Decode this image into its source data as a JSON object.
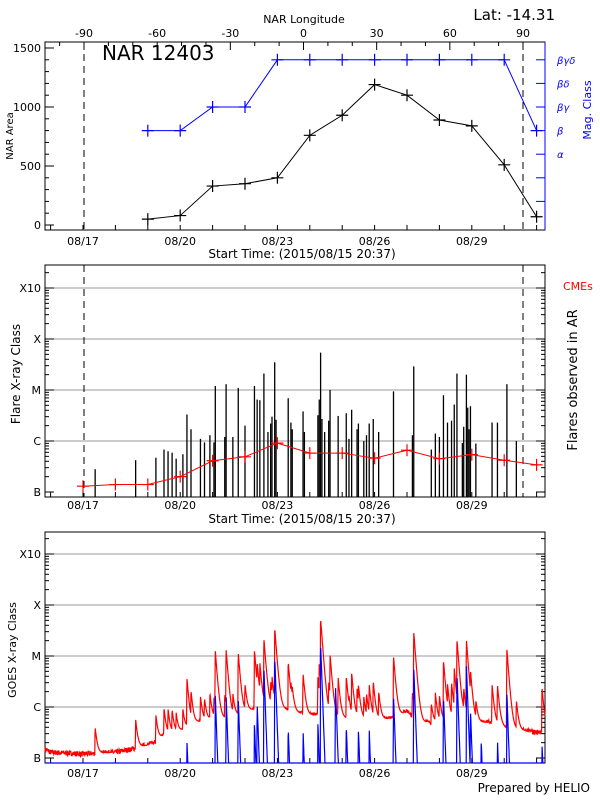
{
  "chart_data": [
    {
      "type": "line",
      "title": "NAR 12403",
      "annotation": "Lat: -14.31",
      "xlabel": "Start Time: (2015/08/15 20:37)",
      "x_tick_labels": [
        "08/17",
        "08/20",
        "08/23",
        "08/26",
        "08/29"
      ],
      "top_axis_label": "NAR Longitude",
      "top_tick_labels": [
        "-90",
        "-60",
        "-30",
        "0",
        "30",
        "60",
        "90"
      ],
      "ylabel": "NAR Area",
      "y_tick_labels": [
        "0",
        "500",
        "1000",
        "1500"
      ],
      "ylim": [
        -40,
        1550
      ],
      "y2label": "Mag. Class",
      "y2_tick_labels": [
        "α",
        "β",
        "βγ",
        "βδ",
        "βγδ"
      ],
      "limb_longitudes": [
        -90,
        90
      ],
      "x": [
        "08/19",
        "08/20",
        "08/21",
        "08/22",
        "08/23",
        "08/24",
        "08/25",
        "08/26",
        "08/27",
        "08/28",
        "08/29",
        "08/30",
        "08/31"
      ],
      "series": [
        {
          "axis": "left",
          "color": "#000000",
          "values": [
            50,
            80,
            330,
            350,
            400,
            760,
            930,
            1190,
            1100,
            890,
            840,
            510,
            70
          ]
        },
        {
          "axis": "right",
          "color": "#0000ff",
          "values": [
            "β",
            "β",
            "βγ",
            "βγ",
            "βγδ",
            "βγδ",
            "βγδ",
            "βγδ",
            "βγδ",
            "βγδ",
            "βγδ",
            "βγδ",
            "β"
          ]
        }
      ]
    },
    {
      "type": "bar",
      "xlabel": "Start Time: (2015/08/15 20:37)",
      "x_tick_labels": [
        "08/17",
        "08/20",
        "08/23",
        "08/26",
        "08/29"
      ],
      "ylabel": "Flare X-ray Class",
      "y_tick_labels": [
        "B",
        "C",
        "M",
        "X",
        "X10"
      ],
      "y_scale": "log",
      "grid": true,
      "y2label": "Flares observed in AR",
      "flares": [
        [
          "08/17 09:00",
          "B2.8"
        ],
        [
          "08/18 15:00",
          "B4.2"
        ],
        [
          "08/19 06:00",
          "B4.7"
        ],
        [
          "08/19 12:00",
          "B6.8"
        ],
        [
          "08/19 15:00",
          "B6.3"
        ],
        [
          "08/19 18:00",
          "B5.9"
        ],
        [
          "08/19 21:00",
          "B4.5"
        ],
        [
          "08/20 02:00",
          "B5.5"
        ],
        [
          "08/20 05:00",
          "C3.3"
        ],
        [
          "08/20 08:00",
          "C1.7"
        ],
        [
          "08/20 15:00",
          "C1.1"
        ],
        [
          "08/20 18:00",
          "B9.4"
        ],
        [
          "08/20 22:00",
          "C1.3"
        ],
        [
          "08/21 01:00",
          "B9.4"
        ],
        [
          "08/21 02:00",
          "M1.2"
        ],
        [
          "08/21 09:00",
          "C1.2"
        ],
        [
          "08/21 10:00",
          "M1.3"
        ],
        [
          "08/21 15:00",
          "C1.2"
        ],
        [
          "08/21 19:00",
          "M1.1"
        ],
        [
          "08/22 00:00",
          "C2.0"
        ],
        [
          "08/22 07:00",
          "M1.2"
        ],
        [
          "08/22 09:00",
          "C6.5"
        ],
        [
          "08/22 11:00",
          "C6.3"
        ],
        [
          "08/22 14:00",
          "M2.1"
        ],
        [
          "08/22 17:00",
          "C1.5"
        ],
        [
          "08/22 19:00",
          "C2.2"
        ],
        [
          "08/22 20:00",
          "C3.0"
        ],
        [
          "08/22 22:00",
          "M3.5"
        ],
        [
          "08/22 23:00",
          "C2.6"
        ],
        [
          "08/23 08:00",
          "C6.9"
        ],
        [
          "08/23 10:00",
          "C2.3"
        ],
        [
          "08/23 11:00",
          "C1.7"
        ],
        [
          "08/23 19:00",
          "C3.8"
        ],
        [
          "08/23 20:00",
          "C1.5"
        ],
        [
          "08/24 06:00",
          "C3.2"
        ],
        [
          "08/24 07:00",
          "C6.5"
        ],
        [
          "08/24 08:00",
          "M5.4"
        ],
        [
          "08/24 09:00",
          "C2.7"
        ],
        [
          "08/24 11:00",
          "C1.5"
        ],
        [
          "08/24 14:00",
          "C2.5"
        ],
        [
          "08/24 15:00",
          "M1.0"
        ],
        [
          "08/24 21:00",
          "C3.1"
        ],
        [
          "08/25 03:00",
          "C3.5"
        ],
        [
          "08/25 05:00",
          "C1.1"
        ],
        [
          "08/25 07:00",
          "C4.1"
        ],
        [
          "08/25 11:00",
          "C1.7"
        ],
        [
          "08/25 12:00",
          "C2.2"
        ],
        [
          "08/25 16:00",
          "C1.0"
        ],
        [
          "08/25 18:00",
          "C1.3"
        ],
        [
          "08/25 20:00",
          "C2.2"
        ],
        [
          "08/25 23:00",
          "C2.7"
        ],
        [
          "08/26 03:00",
          "C1.5"
        ],
        [
          "08/26 14:00",
          "C9.4"
        ],
        [
          "08/27 04:00",
          "C1.3"
        ],
        [
          "08/27 05:00",
          "M2.9"
        ],
        [
          "08/27 18:00",
          "B6.8"
        ],
        [
          "08/27 21:00",
          "C1.4"
        ],
        [
          "08/28 00:00",
          "C1.2"
        ],
        [
          "08/28 03:00",
          "C7.9"
        ],
        [
          "08/28 06:00",
          "C2.3"
        ],
        [
          "08/28 09:00",
          "C2.5"
        ],
        [
          "08/28 11:00",
          "C5.2"
        ],
        [
          "08/28 13:00",
          "M2.1"
        ],
        [
          "08/28 17:00",
          "B9.1"
        ],
        [
          "08/28 18:00",
          "C1.9"
        ],
        [
          "08/28 20:00",
          "M2.0"
        ],
        [
          "08/28 21:00",
          "C4.5"
        ],
        [
          "08/28 22:00",
          "C1.7"
        ],
        [
          "08/28 23:00",
          "C4.8"
        ],
        [
          "08/29 03:00",
          "B8.9"
        ],
        [
          "08/29 15:00",
          "C2.3"
        ],
        [
          "08/29 19:00",
          "C2.3"
        ],
        [
          "08/30 02:00",
          "M1.3"
        ],
        [
          "08/30 09:00",
          "C1.0"
        ]
      ],
      "series": [
        {
          "name": "CMEs",
          "color": "#ff0000",
          "x": [
            "08/17",
            "08/18",
            "08/19",
            "08/20",
            "08/21",
            "08/22",
            "08/23",
            "08/24",
            "08/25",
            "08/26",
            "08/27",
            "08/28",
            "08/29",
            "08/30",
            "08/31"
          ],
          "values": [
            "B1.3",
            "B1.4",
            "B1.4",
            "B2.0",
            "B4.1",
            "B4.9",
            "B9.1",
            "B5.8",
            "B5.8",
            "B4.6",
            "B6.6",
            "B4.5",
            "B5.4",
            "B4.2",
            "B3.4"
          ]
        }
      ]
    },
    {
      "type": "line",
      "ylabel": "GOES X-ray Class",
      "x_tick_labels": [
        "08/17",
        "08/20",
        "08/23",
        "08/26",
        "08/29"
      ],
      "y_tick_labels": [
        "B",
        "C",
        "M",
        "X",
        "X10"
      ],
      "y_scale": "log",
      "grid": true,
      "series": [
        {
          "color": "#ff0000",
          "background_x": [
            "08/15 20:00",
            "08/16 00:00",
            "08/17 00:00",
            "08/18 00:00",
            "08/18 12:00",
            "08/19 00:00",
            "08/19 12:00",
            "08/20 00:00",
            "08/20 12:00",
            "08/21 00:00",
            "08/21 12:00",
            "08/22 00:00",
            "08/22 12:00",
            "08/23 00:00",
            "08/23 12:00",
            "08/24 00:00",
            "08/24 12:00",
            "08/25 00:00",
            "08/25 12:00",
            "08/26 00:00",
            "08/26 12:00",
            "08/27 00:00",
            "08/27 12:00",
            "08/28 00:00",
            "08/28 12:00",
            "08/29 00:00",
            "08/29 12:00",
            "08/30 00:00",
            "08/30 12:00",
            "08/31 00:00",
            "08/31 06:00"
          ],
          "background": [
            "B1.5",
            "B1.3",
            "B1.2",
            "B1.3",
            "B1.5",
            "B1.8",
            "B2.8",
            "B3.4",
            "B5.0",
            "B6.0",
            "B6.0",
            "B8.0",
            "C1.0",
            "C1.0",
            "B8.0",
            "B7.0",
            "B7.0",
            "B6.0",
            "B6.0",
            "B5.5",
            "B6.0",
            "B8.0",
            "B5.0",
            "B5.0",
            "B6.0",
            "B5.0",
            "B5.0",
            "B4.0",
            "B3.5",
            "B3.2",
            "B3.5"
          ],
          "extra_peaks": [
            [
              "08/31 04:00",
              "C2.1"
            ]
          ]
        },
        {
          "color": "#0000ff",
          "peaks": [
            [
              "08/20 05:00",
              "B2.2"
            ],
            [
              "08/21 02:00",
              "C1.7"
            ],
            [
              "08/21 10:00",
              "C1.7"
            ],
            [
              "08/21 19:00",
              "C1.5"
            ],
            [
              "08/22 07:00",
              "B4.8"
            ],
            [
              "08/22 09:00",
              "C1.2"
            ],
            [
              "08/22 14:00",
              "C6.0"
            ],
            [
              "08/22 22:00",
              "M1.0"
            ],
            [
              "08/23 08:00",
              "B4.0"
            ],
            [
              "08/23 19:00",
              "B3.5"
            ],
            [
              "08/24 06:00",
              "B4.8"
            ],
            [
              "08/24 08:00",
              "M1.8"
            ],
            [
              "08/24 19:00",
              "C2.7"
            ],
            [
              "08/25 03:00",
              "B4.5"
            ],
            [
              "08/25 12:00",
              "B3.8"
            ],
            [
              "08/25 20:00",
              "B3.7"
            ],
            [
              "08/26 14:00",
              "C1.7"
            ],
            [
              "08/27 05:00",
              "C6.0"
            ],
            [
              "08/28 03:00",
              "C1.7"
            ],
            [
              "08/28 13:00",
              "C4.6"
            ],
            [
              "08/28 20:00",
              "C6.8"
            ],
            [
              "08/28 23:00",
              "B9.0"
            ],
            [
              "08/29 07:00",
              "B2.1"
            ],
            [
              "08/29 19:00",
              "B2.3"
            ],
            [
              "08/30 02:00",
              "C1.8"
            ],
            [
              "08/31 04:00",
              "B2.0"
            ]
          ]
        }
      ]
    }
  ],
  "footer": "Prepared by HELIO",
  "labels": {
    "title": "NAR 12403",
    "lat": "Lat: -14.31",
    "longitude": "NAR Longitude",
    "start_time": "Start Time: (2015/08/15 20:37)",
    "area": "NAR Area",
    "mag": "Mag. Class",
    "flare_class": "Flare X-ray Class",
    "flares_ar": "Flares observed in AR",
    "cmes": "CMEs",
    "goes": "GOES X-ray Class"
  }
}
